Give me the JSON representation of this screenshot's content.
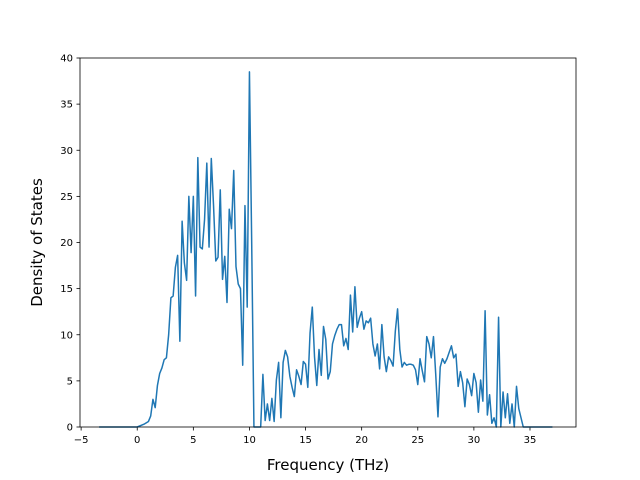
{
  "chart_data": {
    "type": "line",
    "title": "",
    "xlabel": "Frequency (THz)",
    "ylabel": "Density of States",
    "xlim": [
      -5.1,
      39.1
    ],
    "ylim": [
      0,
      40
    ],
    "grid": false,
    "x_ticks": [
      -5,
      0,
      5,
      10,
      15,
      20,
      25,
      30,
      35
    ],
    "y_ticks": [
      0,
      5,
      10,
      15,
      20,
      25,
      30,
      35,
      40
    ],
    "line_color": "#1f77b4",
    "series": [
      {
        "x": [
          -3.4,
          -1.0,
          0.0,
          0.6,
          1.0,
          1.2,
          1.4,
          1.6,
          1.8,
          2.0,
          2.2,
          2.4,
          2.6,
          2.8,
          3.0,
          3.2,
          3.4,
          3.6,
          3.8,
          4.0,
          4.2,
          4.4,
          4.6,
          4.8,
          5.0,
          5.2,
          5.4,
          5.6,
          5.8,
          6.0,
          6.2,
          6.4,
          6.6,
          6.8,
          7.0,
          7.2,
          7.4,
          7.6,
          7.8,
          8.0,
          8.2,
          8.4,
          8.6,
          8.8,
          9.0,
          9.2,
          9.4,
          9.6,
          9.8,
          10.0,
          10.2,
          10.4,
          10.6,
          10.8,
          11.0,
          11.2,
          11.4,
          11.6,
          11.8,
          12.0,
          12.2,
          12.4,
          12.6,
          12.8,
          13.0,
          13.2,
          13.4,
          13.6,
          13.8,
          14.0,
          14.2,
          14.4,
          14.6,
          14.8,
          15.0,
          15.2,
          15.4,
          15.6,
          15.8,
          16.0,
          16.2,
          16.4,
          16.6,
          16.8,
          17.0,
          17.2,
          17.4,
          17.6,
          17.8,
          18.0,
          18.2,
          18.4,
          18.6,
          18.8,
          19.0,
          19.2,
          19.4,
          19.6,
          19.8,
          20.0,
          20.2,
          20.4,
          20.6,
          20.8,
          21.0,
          21.2,
          21.4,
          21.6,
          21.8,
          22.0,
          22.2,
          22.4,
          22.6,
          22.8,
          23.0,
          23.2,
          23.4,
          23.6,
          23.8,
          24.0,
          24.2,
          24.4,
          24.6,
          24.8,
          25.0,
          25.2,
          25.4,
          25.6,
          25.8,
          26.0,
          26.2,
          26.4,
          26.6,
          26.8,
          27.0,
          27.2,
          27.4,
          27.6,
          27.8,
          28.0,
          28.2,
          28.4,
          28.6,
          28.8,
          29.0,
          29.2,
          29.4,
          29.6,
          29.8,
          30.0,
          30.2,
          30.4,
          30.6,
          30.8,
          31.0,
          31.2,
          31.4,
          31.6,
          31.8,
          32.0,
          32.2,
          32.4,
          32.6,
          32.8,
          33.0,
          33.2,
          33.4,
          33.6,
          33.8,
          34.0,
          34.4,
          35.0,
          36.0,
          37.0
        ],
        "y": [
          0,
          0,
          0,
          0.3,
          0.6,
          1.2,
          3.0,
          2.1,
          4.5,
          5.8,
          6.4,
          7.3,
          7.5,
          10.0,
          14.0,
          14.2,
          17.3,
          18.6,
          9.3,
          22.3,
          17.8,
          15.9,
          25.0,
          18.9,
          25.0,
          14.2,
          29.2,
          19.5,
          19.3,
          22.5,
          28.6,
          19.5,
          29.1,
          24.0,
          18.0,
          18.4,
          25.7,
          16.0,
          18.5,
          13.5,
          23.6,
          21.5,
          27.8,
          17.4,
          15.5,
          15.0,
          6.7,
          24.0,
          13.0,
          38.5,
          20.0,
          0,
          0,
          0,
          0,
          5.7,
          0.7,
          2.5,
          0.7,
          3.1,
          0.6,
          5.1,
          7.0,
          1.0,
          7.0,
          8.3,
          7.6,
          5.5,
          4.3,
          3.3,
          6.2,
          5.5,
          4.6,
          7.1,
          6.8,
          4.3,
          10.2,
          13.0,
          7.6,
          4.5,
          8.4,
          5.6,
          10.9,
          9.5,
          5.2,
          6.0,
          9.0,
          9.9,
          10.6,
          11.1,
          11.1,
          8.8,
          9.6,
          8.4,
          14.3,
          10.3,
          15.2,
          10.8,
          11.8,
          12.5,
          10.6,
          11.5,
          11.3,
          11.8,
          9.0,
          7.7,
          9.0,
          6.3,
          11.1,
          7.6,
          6.0,
          7.6,
          7.2,
          6.6,
          10.4,
          12.8,
          8.4,
          6.5,
          7.0,
          6.7,
          6.8,
          6.8,
          6.7,
          6.2,
          4.6,
          7.4,
          6.1,
          4.9,
          9.8,
          9.0,
          7.5,
          9.8,
          5.7,
          1.1,
          6.5,
          7.4,
          6.9,
          7.4,
          8.1,
          8.8,
          7.5,
          7.9,
          4.4,
          6.0,
          4.8,
          2.2,
          5.2,
          4.6,
          3.4,
          5.8,
          4.8,
          1.6,
          5.1,
          2.8,
          12.6,
          1.3,
          3.5,
          0.4,
          1.0,
          0,
          11.9,
          0,
          3.8,
          1.0,
          3.6,
          0.4,
          2.5,
          0,
          4.4,
          2.0,
          0,
          0,
          0,
          0
        ]
      }
    ]
  }
}
